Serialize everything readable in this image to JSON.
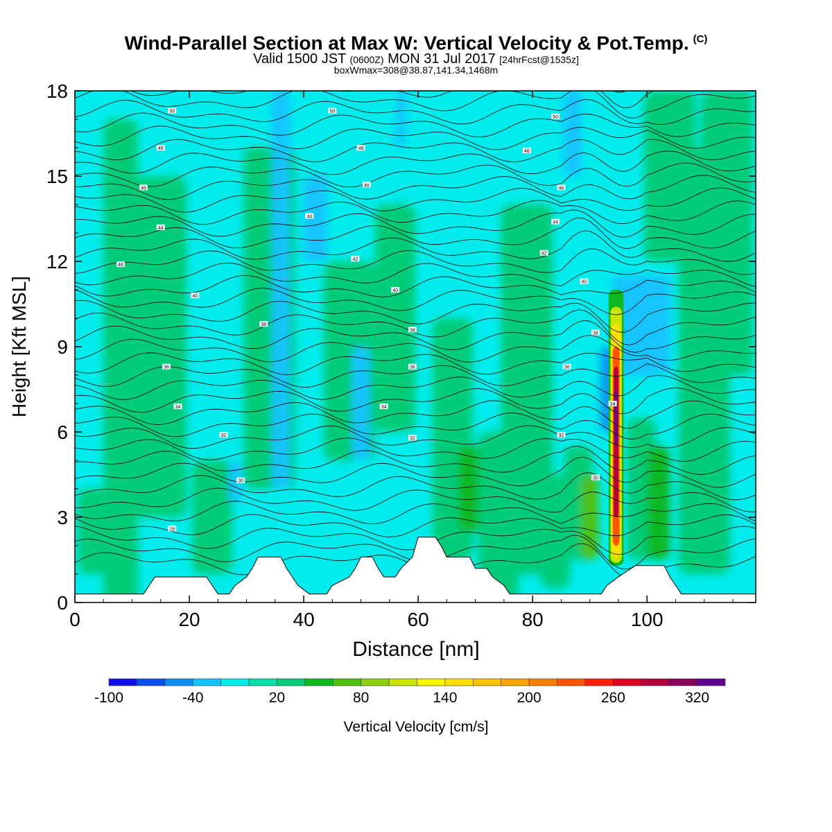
{
  "header": {
    "title": "Wind-Parallel Section at Max W: Vertical Velocity & Pot.Temp.",
    "copyright_mark": "(C)",
    "valid_prefix": "Valid 1500 JST",
    "valid_utc": "(0600Z)",
    "valid_date": "MON 31 Jul 2017",
    "forecast_info": "[24hrFcst@1535z]",
    "box_info": "boxWmax=308@38.87,141.34,1468m"
  },
  "chart_data": {
    "type": "heatmap",
    "xlabel": "Distance [nm]",
    "ylabel": "Height [Kft MSL]",
    "xlim": [
      0,
      119
    ],
    "ylim": [
      0,
      18
    ],
    "x_ticks": [
      0,
      20,
      40,
      60,
      80,
      100
    ],
    "y_ticks": [
      0,
      3,
      6,
      9,
      12,
      15,
      18
    ],
    "grid": false,
    "colorbar": {
      "label": "Vertical Velocity [cm/s]",
      "placement": "bottom",
      "tick_labels": [
        "-100",
        "-40",
        "20",
        "80",
        "140",
        "200",
        "260",
        "320"
      ],
      "tick_values": [
        -100,
        -40,
        20,
        80,
        140,
        200,
        260,
        320
      ],
      "levels": [
        -100,
        -80,
        -60,
        -40,
        -20,
        0,
        20,
        40,
        60,
        80,
        100,
        120,
        140,
        160,
        180,
        200,
        220,
        240,
        260,
        280,
        300,
        320,
        340,
        360
      ],
      "colors": [
        "#1010ee",
        "#0a50ee",
        "#0a8cf0",
        "#12c4ff",
        "#00ecec",
        "#00e0ac",
        "#00cc78",
        "#10b820",
        "#50c010",
        "#90d010",
        "#c8e400",
        "#f6f600",
        "#ffe000",
        "#ffc400",
        "#ffa400",
        "#ff8000",
        "#ff5400",
        "#ff2000",
        "#e00020",
        "#b40040",
        "#88005c",
        "#600090"
      ]
    },
    "max_updraft": {
      "x": 94.6,
      "value": 308
    },
    "theta_contour_labels": [
      {
        "x": 17,
        "y": 17.3,
        "text": "50"
      },
      {
        "x": 45,
        "y": 17.3,
        "text": "50"
      },
      {
        "x": 84,
        "y": 17.1,
        "text": "50"
      },
      {
        "x": 15,
        "y": 16.0,
        "text": "48"
      },
      {
        "x": 50,
        "y": 16.0,
        "text": "48"
      },
      {
        "x": 79,
        "y": 15.9,
        "text": "48"
      },
      {
        "x": 12,
        "y": 14.6,
        "text": "46"
      },
      {
        "x": 51,
        "y": 14.7,
        "text": "46"
      },
      {
        "x": 85,
        "y": 14.6,
        "text": "46"
      },
      {
        "x": 15,
        "y": 13.2,
        "text": "44"
      },
      {
        "x": 41,
        "y": 13.6,
        "text": "44"
      },
      {
        "x": 84,
        "y": 13.4,
        "text": "44"
      },
      {
        "x": 8,
        "y": 11.9,
        "text": "48"
      },
      {
        "x": 49,
        "y": 12.1,
        "text": "42"
      },
      {
        "x": 82,
        "y": 12.3,
        "text": "42"
      },
      {
        "x": 21,
        "y": 10.8,
        "text": "40"
      },
      {
        "x": 56,
        "y": 11.0,
        "text": "40"
      },
      {
        "x": 89,
        "y": 11.3,
        "text": "40"
      },
      {
        "x": 33,
        "y": 9.8,
        "text": "38"
      },
      {
        "x": 59,
        "y": 9.6,
        "text": "38"
      },
      {
        "x": 91,
        "y": 9.5,
        "text": "38"
      },
      {
        "x": 16,
        "y": 8.3,
        "text": "36"
      },
      {
        "x": 59,
        "y": 8.3,
        "text": "36"
      },
      {
        "x": 86,
        "y": 8.3,
        "text": "36"
      },
      {
        "x": 18,
        "y": 6.9,
        "text": "34"
      },
      {
        "x": 54,
        "y": 6.9,
        "text": "34"
      },
      {
        "x": 94,
        "y": 7.0,
        "text": "34"
      },
      {
        "x": 26,
        "y": 5.9,
        "text": "32"
      },
      {
        "x": 59,
        "y": 5.8,
        "text": "32"
      },
      {
        "x": 85,
        "y": 5.9,
        "text": "32"
      },
      {
        "x": 29,
        "y": 4.3,
        "text": "30"
      },
      {
        "x": 91,
        "y": 4.4,
        "text": "30"
      },
      {
        "x": 17,
        "y": 2.6,
        "text": "28"
      }
    ],
    "terrain_profile": [
      [
        0,
        0.3
      ],
      [
        12,
        0.3
      ],
      [
        13,
        0.6
      ],
      [
        14,
        0.9
      ],
      [
        23,
        0.9
      ],
      [
        24,
        0.6
      ],
      [
        25,
        0.3
      ],
      [
        27,
        0.3
      ],
      [
        28,
        0.6
      ],
      [
        30,
        0.9
      ],
      [
        31,
        1.2
      ],
      [
        32,
        1.6
      ],
      [
        36,
        1.6
      ],
      [
        37,
        1.2
      ],
      [
        38,
        0.9
      ],
      [
        39,
        0.6
      ],
      [
        41,
        0.3
      ],
      [
        44,
        0.3
      ],
      [
        45,
        0.6
      ],
      [
        48,
        0.9
      ],
      [
        49,
        1.2
      ],
      [
        50,
        1.6
      ],
      [
        52,
        1.6
      ],
      [
        53,
        1.2
      ],
      [
        54,
        0.9
      ],
      [
        56,
        0.9
      ],
      [
        57,
        1.2
      ],
      [
        59,
        1.6
      ],
      [
        60,
        2.3
      ],
      [
        63,
        2.3
      ],
      [
        64,
        2.0
      ],
      [
        65,
        1.6
      ],
      [
        69,
        1.6
      ],
      [
        70,
        1.2
      ],
      [
        72,
        1.2
      ],
      [
        73,
        0.9
      ],
      [
        75,
        0.6
      ],
      [
        76,
        0.3
      ],
      [
        92,
        0.3
      ],
      [
        93,
        0.6
      ],
      [
        95,
        0.9
      ],
      [
        98,
        1.3
      ],
      [
        103,
        1.3
      ],
      [
        104,
        0.9
      ],
      [
        105,
        0.6
      ],
      [
        106,
        0.3
      ],
      [
        119,
        0.3
      ]
    ]
  }
}
